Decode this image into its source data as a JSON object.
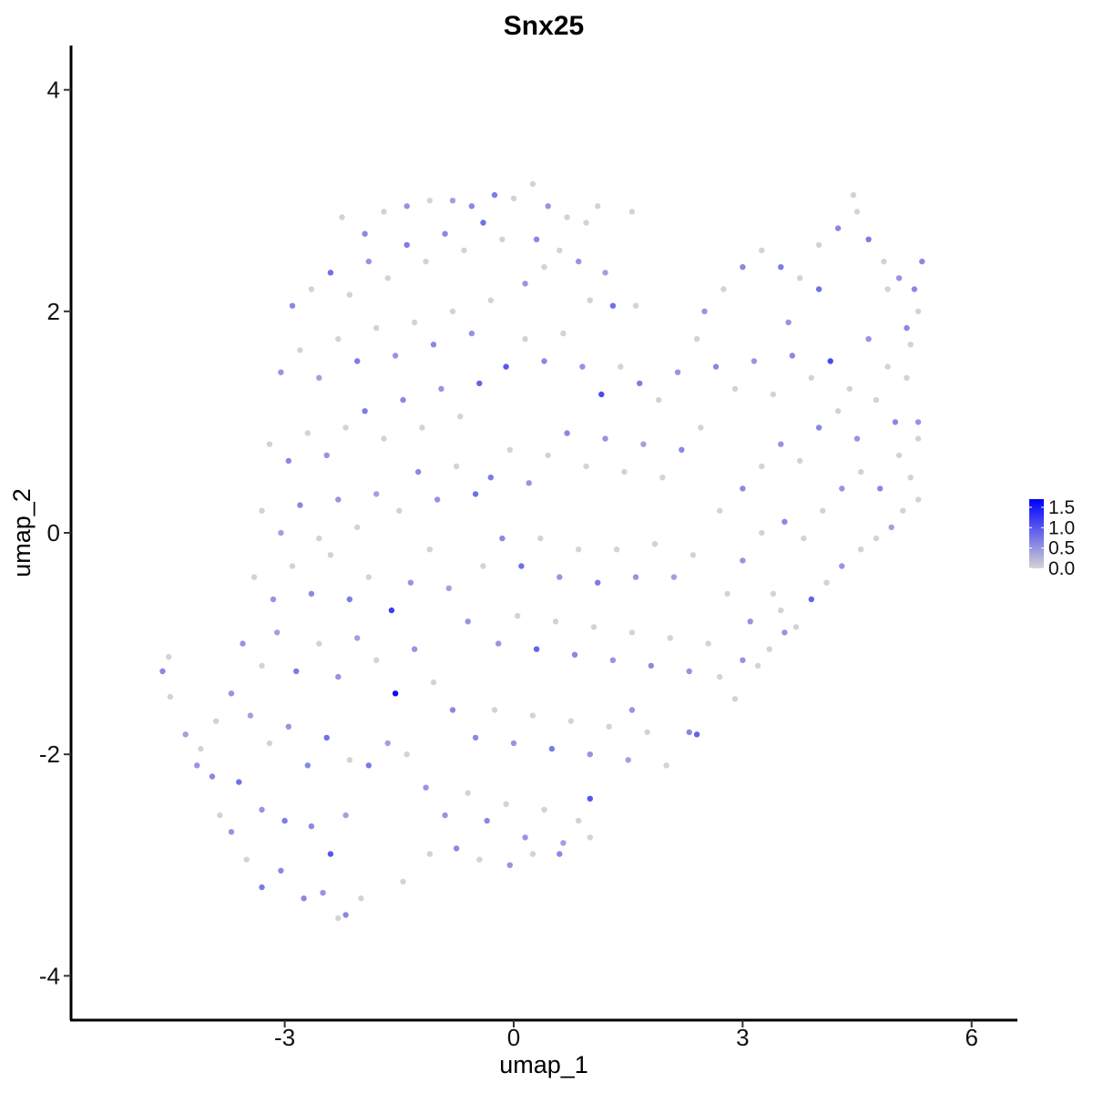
{
  "chart_data": {
    "type": "scatter",
    "title": "Snx25",
    "xlabel": "umap_1",
    "ylabel": "umap_2",
    "xlim": [
      -5.8,
      6.6
    ],
    "ylim": [
      -4.4,
      4.4
    ],
    "x_ticks": [
      -3,
      0,
      3,
      6
    ],
    "y_ticks": [
      -4,
      -2,
      0,
      2,
      4
    ],
    "x_tick_labels": [
      "-3",
      "0",
      "3",
      "6"
    ],
    "y_tick_labels": [
      "-4",
      "-2",
      "0",
      "2",
      "4"
    ],
    "grid": false,
    "legend": {
      "placement": "right",
      "type": "colorbar",
      "breaks": [
        0.0,
        0.5,
        1.0,
        1.5
      ],
      "labels": [
        "0.0",
        "0.5",
        "1.0",
        "1.5"
      ],
      "range": [
        0.0,
        1.7
      ]
    },
    "color_scale": {
      "low": "#d3d3d3",
      "high": "#0000ff"
    },
    "points": [
      [
        -4.6,
        -1.25,
        0.6
      ],
      [
        -4.5,
        -1.48,
        0
      ],
      [
        -4.52,
        -1.12,
        0
      ],
      [
        -4.3,
        -1.82,
        0.4
      ],
      [
        -4.1,
        -1.95,
        0
      ],
      [
        -4.15,
        -2.1,
        0.5
      ],
      [
        -3.95,
        -2.2,
        0.6
      ],
      [
        -3.85,
        -2.55,
        0
      ],
      [
        -3.7,
        -2.7,
        0.5
      ],
      [
        -3.5,
        -2.95,
        0
      ],
      [
        -3.3,
        -3.2,
        0.7
      ],
      [
        -3.05,
        -3.05,
        0.6
      ],
      [
        -2.75,
        -3.3,
        0.6
      ],
      [
        -2.5,
        -3.25,
        0.5
      ],
      [
        -2.3,
        -3.48,
        0
      ],
      [
        -2.2,
        -3.45,
        0.6
      ],
      [
        -2.0,
        -3.3,
        0
      ],
      [
        -1.45,
        -3.15,
        0
      ],
      [
        -3.6,
        -2.25,
        0.8
      ],
      [
        -3.3,
        -2.5,
        0.5
      ],
      [
        -3.0,
        -2.6,
        0.7
      ],
      [
        -2.65,
        -2.65,
        0.6
      ],
      [
        -2.4,
        -2.9,
        1.0
      ],
      [
        -2.2,
        -2.55,
        0.4
      ],
      [
        -3.9,
        -1.7,
        0
      ],
      [
        -3.7,
        -1.45,
        0.5
      ],
      [
        -3.45,
        -1.65,
        0.4
      ],
      [
        -3.2,
        -1.9,
        0
      ],
      [
        -2.95,
        -1.75,
        0.5
      ],
      [
        -2.7,
        -2.1,
        0.6
      ],
      [
        -2.45,
        -1.85,
        0.8
      ],
      [
        -2.15,
        -2.05,
        0
      ],
      [
        -1.9,
        -2.1,
        0.7
      ],
      [
        -1.65,
        -1.9,
        0.4
      ],
      [
        -1.4,
        -2.0,
        0
      ],
      [
        -1.15,
        -2.3,
        0.5
      ],
      [
        -3.55,
        -1.0,
        0.5
      ],
      [
        -3.3,
        -1.2,
        0
      ],
      [
        -3.1,
        -0.9,
        0.4
      ],
      [
        -2.85,
        -1.25,
        0.7
      ],
      [
        -2.55,
        -1.0,
        0
      ],
      [
        -2.3,
        -1.3,
        0.5
      ],
      [
        -2.05,
        -0.95,
        0.4
      ],
      [
        -1.8,
        -1.15,
        0
      ],
      [
        -1.55,
        -1.45,
        1.6
      ],
      [
        -1.3,
        -1.05,
        0.5
      ],
      [
        -1.05,
        -1.35,
        0
      ],
      [
        -0.8,
        -1.6,
        0.6
      ],
      [
        -3.4,
        -0.4,
        0
      ],
      [
        -3.15,
        -0.6,
        0.5
      ],
      [
        -2.9,
        -0.3,
        0
      ],
      [
        -2.65,
        -0.55,
        0.6
      ],
      [
        -2.4,
        -0.2,
        0
      ],
      [
        -2.15,
        -0.6,
        0.7
      ],
      [
        -1.9,
        -0.4,
        0
      ],
      [
        -1.6,
        -0.7,
        1.2
      ],
      [
        -1.35,
        -0.45,
        0.5
      ],
      [
        -1.1,
        -0.15,
        0
      ],
      [
        -0.85,
        -0.5,
        0.4
      ],
      [
        -0.6,
        -0.8,
        0.5
      ],
      [
        -3.3,
        0.2,
        0
      ],
      [
        -3.05,
        0.0,
        0.4
      ],
      [
        -2.8,
        0.25,
        0.6
      ],
      [
        -2.55,
        -0.05,
        0
      ],
      [
        -2.3,
        0.3,
        0.5
      ],
      [
        -2.05,
        0.05,
        0
      ],
      [
        -1.8,
        0.35,
        0.4
      ],
      [
        -1.5,
        0.2,
        0
      ],
      [
        -1.25,
        0.55,
        0.6
      ],
      [
        -1.0,
        0.3,
        0.5
      ],
      [
        -0.75,
        0.6,
        0
      ],
      [
        -0.5,
        0.35,
        0.8
      ],
      [
        -3.2,
        0.8,
        0
      ],
      [
        -2.95,
        0.65,
        0.6
      ],
      [
        -2.7,
        0.9,
        0
      ],
      [
        -2.45,
        0.7,
        0.5
      ],
      [
        -2.2,
        0.95,
        0
      ],
      [
        -1.95,
        1.1,
        0.7
      ],
      [
        -1.7,
        0.85,
        0
      ],
      [
        -1.45,
        1.2,
        0.6
      ],
      [
        -1.2,
        0.95,
        0
      ],
      [
        -0.95,
        1.3,
        0.5
      ],
      [
        -0.7,
        1.05,
        0
      ],
      [
        -0.45,
        1.35,
        0.9
      ],
      [
        -3.05,
        1.45,
        0.5
      ],
      [
        -2.8,
        1.65,
        0
      ],
      [
        -2.55,
        1.4,
        0.4
      ],
      [
        -2.3,
        1.75,
        0
      ],
      [
        -2.05,
        1.55,
        0.7
      ],
      [
        -1.8,
        1.85,
        0
      ],
      [
        -1.55,
        1.6,
        0.5
      ],
      [
        -1.3,
        1.9,
        0
      ],
      [
        -1.05,
        1.7,
        0.6
      ],
      [
        -0.8,
        2.0,
        0
      ],
      [
        -0.55,
        1.8,
        0.5
      ],
      [
        -0.3,
        2.1,
        0
      ],
      [
        -2.9,
        2.05,
        0.6
      ],
      [
        -2.65,
        2.2,
        0
      ],
      [
        -2.4,
        2.35,
        0.8
      ],
      [
        -2.15,
        2.15,
        0
      ],
      [
        -1.9,
        2.45,
        0.5
      ],
      [
        -1.65,
        2.3,
        0
      ],
      [
        -1.4,
        2.6,
        0.7
      ],
      [
        -1.15,
        2.45,
        0
      ],
      [
        -0.9,
        2.7,
        0.6
      ],
      [
        -0.65,
        2.55,
        0
      ],
      [
        -0.4,
        2.8,
        0.8
      ],
      [
        -0.15,
        2.65,
        0
      ],
      [
        -2.25,
        2.85,
        0
      ],
      [
        -1.95,
        2.7,
        0.6
      ],
      [
        -1.7,
        2.9,
        0
      ],
      [
        -1.4,
        2.95,
        0.5
      ],
      [
        -1.1,
        3.0,
        0
      ],
      [
        -0.8,
        3.0,
        0.4
      ],
      [
        -0.55,
        2.95,
        0.6
      ],
      [
        -0.25,
        3.05,
        0.7
      ],
      [
        0.0,
        3.02,
        0
      ],
      [
        0.25,
        3.15,
        0
      ],
      [
        0.45,
        2.95,
        0.5
      ],
      [
        0.7,
        2.85,
        0
      ],
      [
        0.95,
        2.8,
        0
      ],
      [
        1.1,
        2.95,
        0
      ],
      [
        1.55,
        2.9,
        0
      ],
      [
        0.3,
        2.65,
        0.6
      ],
      [
        0.6,
        2.55,
        0
      ],
      [
        0.85,
        2.45,
        0.5
      ],
      [
        1.0,
        2.1,
        0
      ],
      [
        1.2,
        2.35,
        0.4
      ],
      [
        1.3,
        2.05,
        0.8
      ],
      [
        1.6,
        2.05,
        0
      ],
      [
        0.15,
        2.25,
        0.5
      ],
      [
        0.4,
        2.4,
        0
      ],
      [
        -0.1,
        1.5,
        1.0
      ],
      [
        0.15,
        1.75,
        0
      ],
      [
        0.4,
        1.55,
        0.6
      ],
      [
        0.65,
        1.8,
        0
      ],
      [
        0.9,
        1.5,
        0.5
      ],
      [
        1.15,
        1.25,
        1.1
      ],
      [
        1.4,
        1.5,
        0
      ],
      [
        1.65,
        1.35,
        0.7
      ],
      [
        1.9,
        1.2,
        0
      ],
      [
        2.15,
        1.45,
        0.5
      ],
      [
        2.4,
        1.75,
        0
      ],
      [
        2.65,
        1.5,
        0.6
      ],
      [
        -0.3,
        0.5,
        0.7
      ],
      [
        -0.05,
        0.75,
        0
      ],
      [
        0.2,
        0.45,
        0.5
      ],
      [
        0.45,
        0.7,
        0
      ],
      [
        0.7,
        0.9,
        0.6
      ],
      [
        0.95,
        0.6,
        0
      ],
      [
        1.2,
        0.85,
        0.5
      ],
      [
        1.45,
        0.55,
        0
      ],
      [
        1.7,
        0.8,
        0.4
      ],
      [
        1.95,
        0.5,
        0
      ],
      [
        2.2,
        0.75,
        0.6
      ],
      [
        2.45,
        0.95,
        0
      ],
      [
        -0.4,
        -0.3,
        0
      ],
      [
        -0.15,
        -0.05,
        0.6
      ],
      [
        0.1,
        -0.3,
        0.8
      ],
      [
        0.35,
        -0.05,
        0
      ],
      [
        0.6,
        -0.4,
        0.5
      ],
      [
        0.85,
        -0.15,
        0
      ],
      [
        1.1,
        -0.45,
        0.7
      ],
      [
        1.35,
        -0.15,
        0
      ],
      [
        1.6,
        -0.4,
        0.5
      ],
      [
        1.85,
        -0.1,
        0
      ],
      [
        2.1,
        -0.4,
        0.4
      ],
      [
        2.35,
        -0.2,
        0
      ],
      [
        -0.2,
        -1.0,
        0.5
      ],
      [
        0.05,
        -0.75,
        0
      ],
      [
        0.3,
        -1.05,
        0.9
      ],
      [
        0.55,
        -0.8,
        0
      ],
      [
        0.8,
        -1.1,
        0.6
      ],
      [
        1.05,
        -0.85,
        0
      ],
      [
        1.3,
        -1.15,
        0.5
      ],
      [
        1.55,
        -0.9,
        0
      ],
      [
        1.8,
        -1.2,
        0.6
      ],
      [
        2.05,
        -0.95,
        0
      ],
      [
        2.3,
        -1.25,
        0.5
      ],
      [
        2.55,
        -1.0,
        0
      ],
      [
        -0.5,
        -1.85,
        0.6
      ],
      [
        -0.25,
        -1.6,
        0
      ],
      [
        0.0,
        -1.9,
        0.5
      ],
      [
        0.25,
        -1.65,
        0
      ],
      [
        0.5,
        -1.95,
        0.7
      ],
      [
        0.75,
        -1.7,
        0
      ],
      [
        1.0,
        -2.0,
        0.5
      ],
      [
        1.25,
        -1.75,
        0
      ],
      [
        1.5,
        -2.05,
        0.4
      ],
      [
        1.75,
        -1.8,
        0
      ],
      [
        2.0,
        -2.1,
        0
      ],
      [
        2.3,
        -1.8,
        0.6
      ],
      [
        2.4,
        -1.82,
        0.9
      ],
      [
        1.55,
        -1.6,
        0.5
      ],
      [
        -0.9,
        -2.55,
        0.5
      ],
      [
        -0.6,
        -2.35,
        0
      ],
      [
        -0.35,
        -2.6,
        0.6
      ],
      [
        -0.1,
        -2.45,
        0
      ],
      [
        0.15,
        -2.75,
        0.5
      ],
      [
        0.4,
        -2.5,
        0
      ],
      [
        0.65,
        -2.8,
        0.4
      ],
      [
        0.85,
        -2.6,
        0
      ],
      [
        1.0,
        -2.4,
        1.0
      ],
      [
        1.0,
        -2.75,
        0
      ],
      [
        -1.1,
        -2.9,
        0
      ],
      [
        -0.75,
        -2.85,
        0.6
      ],
      [
        -0.45,
        -2.95,
        0
      ],
      [
        -0.05,
        -3.0,
        0.5
      ],
      [
        0.25,
        -2.9,
        0
      ],
      [
        0.6,
        -2.9,
        0.6
      ],
      [
        2.7,
        -1.3,
        0
      ],
      [
        2.9,
        -1.5,
        0
      ],
      [
        3.0,
        -1.15,
        0.5
      ],
      [
        3.2,
        -1.2,
        0
      ],
      [
        3.35,
        -1.05,
        0
      ],
      [
        3.55,
        -0.9,
        0.5
      ],
      [
        3.7,
        -0.85,
        0
      ],
      [
        3.5,
        -0.7,
        0
      ],
      [
        3.9,
        -0.6,
        0.9
      ],
      [
        4.1,
        -0.45,
        0
      ],
      [
        4.3,
        -0.3,
        0.5
      ],
      [
        4.55,
        -0.15,
        0
      ],
      [
        4.75,
        -0.05,
        0
      ],
      [
        4.95,
        0.05,
        0.4
      ],
      [
        5.1,
        0.2,
        0
      ],
      [
        5.3,
        0.3,
        0
      ],
      [
        3.1,
        -0.8,
        0.5
      ],
      [
        3.4,
        -0.55,
        0
      ],
      [
        2.8,
        -0.55,
        0
      ],
      [
        3.0,
        -0.25,
        0.5
      ],
      [
        3.25,
        0.0,
        0
      ],
      [
        3.55,
        0.1,
        0.6
      ],
      [
        3.8,
        -0.05,
        0
      ],
      [
        4.05,
        0.2,
        0
      ],
      [
        4.3,
        0.4,
        0.5
      ],
      [
        4.55,
        0.55,
        0
      ],
      [
        4.8,
        0.4,
        0.6
      ],
      [
        5.05,
        0.7,
        0
      ],
      [
        5.2,
        0.5,
        0
      ],
      [
        5.3,
        0.85,
        0
      ],
      [
        2.7,
        0.2,
        0
      ],
      [
        3.0,
        0.4,
        0.6
      ],
      [
        3.25,
        0.6,
        0
      ],
      [
        3.5,
        0.8,
        0.5
      ],
      [
        3.75,
        0.65,
        0
      ],
      [
        4.0,
        0.95,
        0.6
      ],
      [
        4.25,
        1.1,
        0
      ],
      [
        4.5,
        0.85,
        0.5
      ],
      [
        4.75,
        1.2,
        0
      ],
      [
        5.0,
        1.0,
        0.6
      ],
      [
        5.3,
        1.0,
        0.5
      ],
      [
        5.15,
        1.4,
        0
      ],
      [
        2.9,
        1.3,
        0
      ],
      [
        3.15,
        1.55,
        0.5
      ],
      [
        3.4,
        1.25,
        0
      ],
      [
        3.65,
        1.6,
        0.6
      ],
      [
        3.9,
        1.4,
        0
      ],
      [
        4.15,
        1.55,
        1.1
      ],
      [
        4.4,
        1.3,
        0
      ],
      [
        4.65,
        1.75,
        0.5
      ],
      [
        4.9,
        1.5,
        0
      ],
      [
        5.15,
        1.85,
        0.6
      ],
      [
        5.3,
        2.0,
        0
      ],
      [
        5.2,
        1.7,
        0
      ],
      [
        2.5,
        2.0,
        0.5
      ],
      [
        2.75,
        2.2,
        0
      ],
      [
        3.0,
        2.4,
        0.6
      ],
      [
        3.25,
        2.55,
        0
      ],
      [
        3.5,
        2.4,
        0.7
      ],
      [
        3.75,
        2.3,
        0
      ],
      [
        4.0,
        2.6,
        0
      ],
      [
        4.25,
        2.75,
        0.6
      ],
      [
        4.5,
        2.9,
        0
      ],
      [
        4.45,
        3.05,
        0
      ],
      [
        4.65,
        2.65,
        0.7
      ],
      [
        4.85,
        2.45,
        0
      ],
      [
        5.05,
        2.3,
        0.5
      ],
      [
        5.25,
        2.2,
        0.6
      ],
      [
        5.35,
        2.45,
        0.6
      ],
      [
        4.9,
        2.2,
        0
      ],
      [
        4.0,
        2.2,
        0.8
      ],
      [
        3.6,
        1.9,
        0.5
      ]
    ]
  }
}
